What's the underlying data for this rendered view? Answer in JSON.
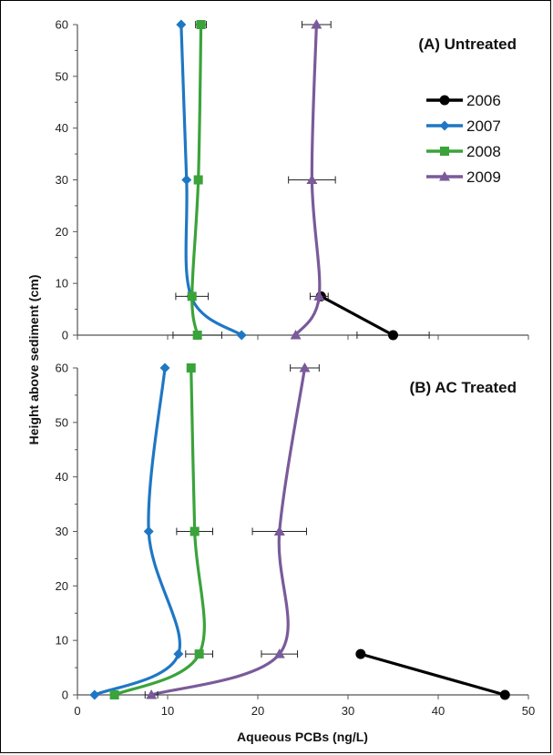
{
  "chart_data": {
    "type": "line",
    "xlabel": "Aqueous PCBs (ng/L)",
    "ylabel": "Height above sediment (cm)",
    "xlim": [
      0,
      50
    ],
    "ylim": [
      0,
      60
    ],
    "x_ticks": [
      0,
      10,
      20,
      30,
      40,
      50
    ],
    "y_ticks": [
      0,
      10,
      20,
      30,
      40,
      50,
      60
    ],
    "legend": {
      "position": "right",
      "entries": [
        {
          "name": "2006",
          "color": "#000000",
          "marker": "circle"
        },
        {
          "name": "2007",
          "color": "#1f77c4",
          "marker": "diamond"
        },
        {
          "name": "2008",
          "color": "#3aa33a",
          "marker": "square"
        },
        {
          "name": "2009",
          "color": "#7a5a9a",
          "marker": "triangle"
        }
      ]
    },
    "panels": [
      {
        "title": "(A) Untreated",
        "series": [
          {
            "name": "2006",
            "color": "#000000",
            "marker": "circle",
            "points": [
              [
                35.0,
                0
              ],
              [
                27.0,
                7.5
              ]
            ],
            "smooth": false
          },
          {
            "name": "2007",
            "color": "#1f77c4",
            "marker": "diamond",
            "points": [
              [
                18.2,
                0
              ],
              [
                12.6,
                7.5
              ],
              [
                12.1,
                30
              ],
              [
                11.5,
                60
              ]
            ],
            "smooth": true
          },
          {
            "name": "2008",
            "color": "#3aa33a",
            "marker": "square",
            "points": [
              [
                13.3,
                0
              ],
              [
                12.7,
                7.5
              ],
              [
                13.4,
                30
              ],
              [
                13.7,
                60
              ]
            ],
            "smooth": true,
            "errors": [
              null,
              1.8,
              null,
              0.6
            ]
          },
          {
            "name": "2009",
            "color": "#7a5a9a",
            "marker": "triangle",
            "points": [
              [
                24.2,
                0
              ],
              [
                26.8,
                7.5
              ],
              [
                26.0,
                30
              ],
              [
                26.5,
                60
              ]
            ],
            "smooth": true,
            "errors": [
              null,
              1.0,
              2.6,
              1.6
            ]
          }
        ],
        "extra_error_bars": [
          {
            "x": 35.0,
            "y": 0,
            "err": 4.0
          },
          {
            "x": 13.3,
            "y": 0,
            "err": 2.7
          }
        ]
      },
      {
        "title": "(B) AC Treated",
        "series": [
          {
            "name": "2006",
            "color": "#000000",
            "marker": "circle",
            "points": [
              [
                47.4,
                0
              ],
              [
                31.4,
                7.5
              ]
            ],
            "smooth": false
          },
          {
            "name": "2007",
            "color": "#1f77c4",
            "marker": "diamond",
            "points": [
              [
                1.9,
                0
              ],
              [
                11.2,
                7.5
              ],
              [
                7.9,
                30
              ],
              [
                9.7,
                60
              ]
            ],
            "smooth": true
          },
          {
            "name": "2008",
            "color": "#3aa33a",
            "marker": "square",
            "points": [
              [
                4.1,
                0
              ],
              [
                13.5,
                7.5
              ],
              [
                13.0,
                30
              ],
              [
                12.6,
                60
              ]
            ],
            "smooth": true,
            "errors": [
              null,
              1.5,
              2.0,
              null
            ]
          },
          {
            "name": "2009",
            "color": "#7a5a9a",
            "marker": "triangle",
            "points": [
              [
                8.2,
                0
              ],
              [
                22.4,
                7.5
              ],
              [
                22.4,
                30
              ],
              [
                25.2,
                60
              ]
            ],
            "smooth": true,
            "errors": [
              0.7,
              2.0,
              3.0,
              1.6
            ]
          }
        ],
        "extra_error_bars": []
      }
    ]
  }
}
